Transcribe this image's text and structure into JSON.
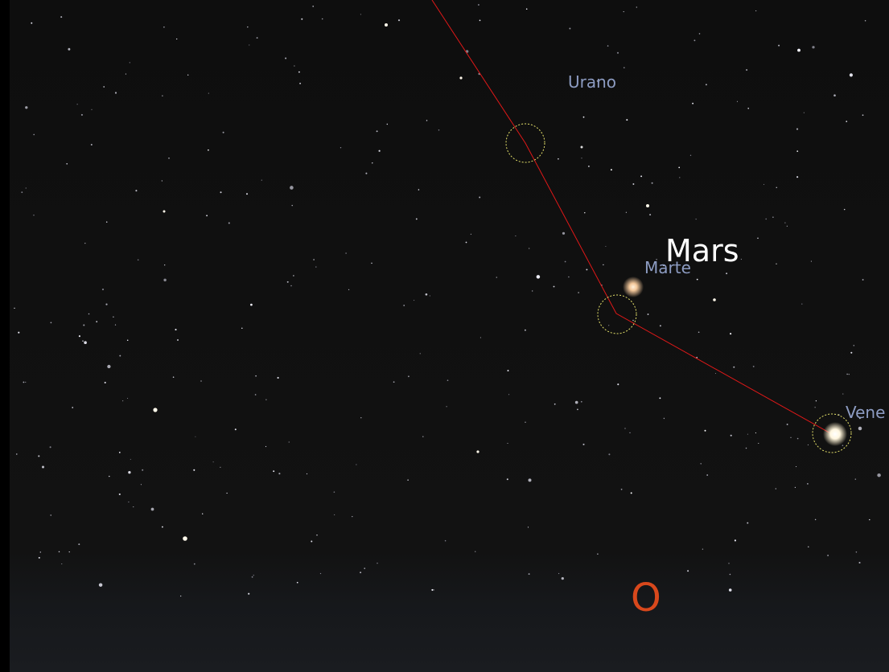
{
  "sky_view": {
    "planet_labels": {
      "uranus": "Urano",
      "mars": "Marte",
      "venus": "Vene"
    },
    "highlight_label": "Mars",
    "cardinal_point": "O"
  }
}
